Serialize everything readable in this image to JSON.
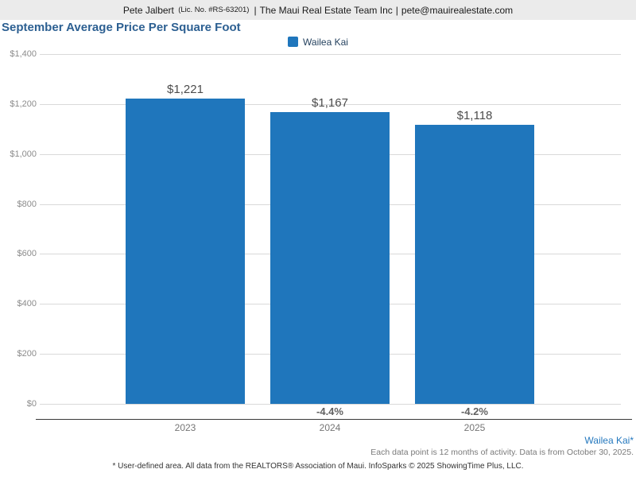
{
  "header": {
    "name": "Pete Jalbert",
    "license": "(Lic. No. #RS-63201)",
    "separator": "|",
    "company": "The Maui Real Estate Team Inc",
    "email": "pete@mauirealestate.com"
  },
  "title": "September Average Price Per Square Foot",
  "legend": {
    "label": "Wailea Kai",
    "color": "#1f76bc"
  },
  "chart_data": {
    "type": "bar",
    "title": "September Average Price Per Square Foot",
    "categories": [
      "2023",
      "2024",
      "2025"
    ],
    "values": [
      1221,
      1167,
      1118
    ],
    "value_labels": [
      "$1,221",
      "$1,167",
      "$1,118"
    ],
    "pct_change_labels": [
      null,
      "-4.4%",
      "-4.2%"
    ],
    "series": [
      {
        "name": "Wailea Kai",
        "values": [
          1221,
          1167,
          1118
        ]
      }
    ],
    "xlabel": "",
    "ylabel": "",
    "ylim": [
      0,
      1400
    ],
    "ytick_step": 200,
    "ytick_labels": [
      "$0",
      "$200",
      "$400",
      "$600",
      "$800",
      "$1,000",
      "$1,200",
      "$1,400"
    ],
    "grid": true,
    "legend_position": "top-center",
    "bar_color": "#1f76bc"
  },
  "footer": {
    "area_label": "Wailea Kai*",
    "data_note": "Each data point is 12 months of activity. Data is from October 30, 2025.",
    "disclaimer": "* User-defined area. All data from the REALTORS® Association of Maui. InfoSparks © 2025 ShowingTime Plus, LLC."
  },
  "colors": {
    "bar": "#1f76bc",
    "title": "#2d6092",
    "header_background": "#ebebeb",
    "footnote_link": "#2478be"
  }
}
